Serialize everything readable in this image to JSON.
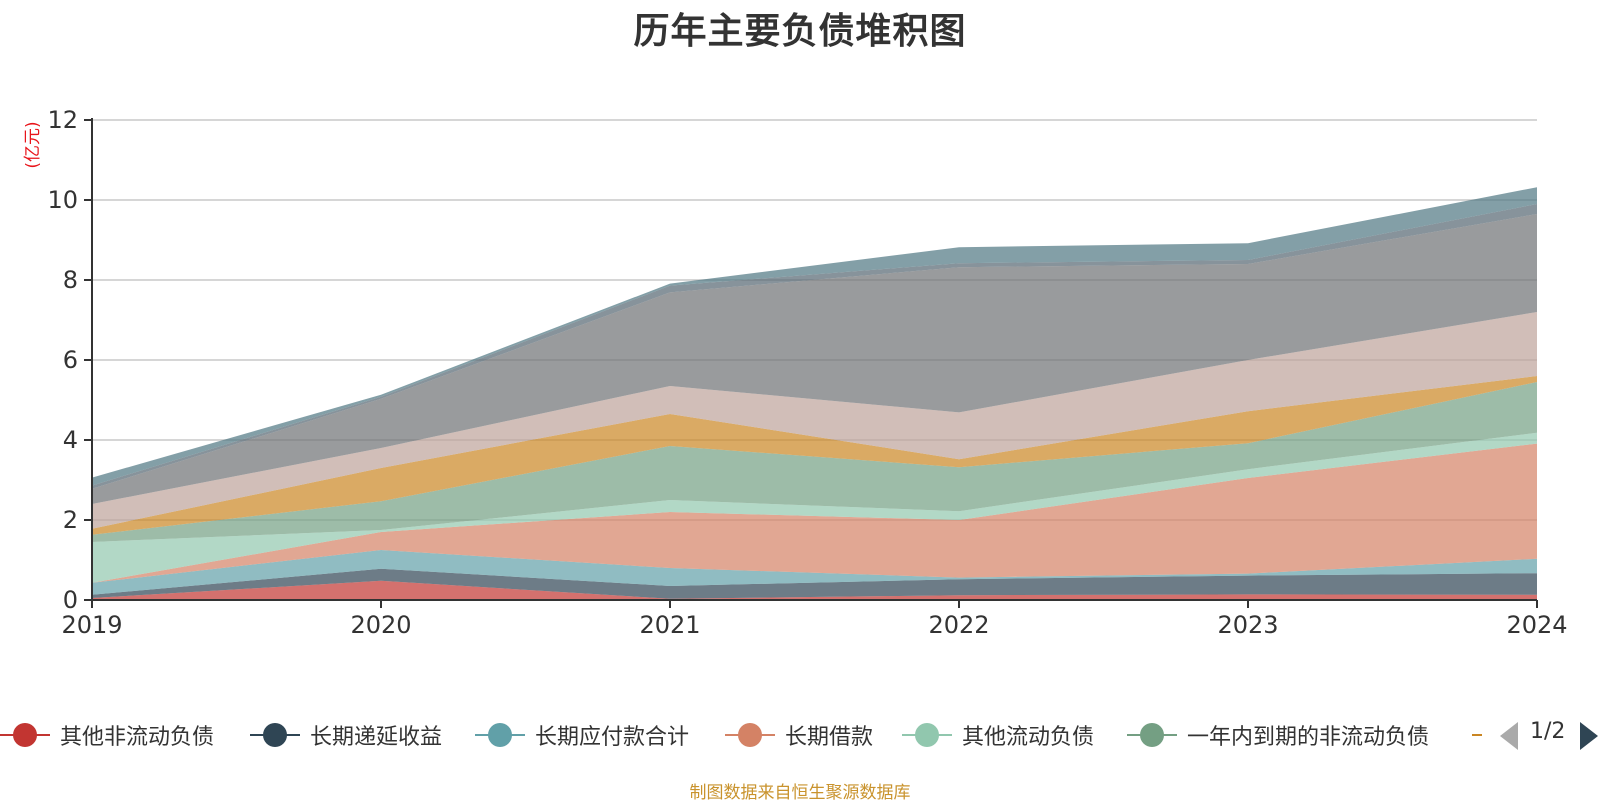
{
  "chart_data": {
    "type": "area",
    "stacked": true,
    "title": "历年主要负债堆积图",
    "unit_label": "(亿元)",
    "x": [
      "2019",
      "2020",
      "2021",
      "2022",
      "2023",
      "2024"
    ],
    "ylim": [
      0,
      12
    ],
    "yticks": [
      0,
      2,
      4,
      6,
      8,
      10,
      12
    ],
    "grid": true,
    "legend_position": "bottom",
    "series": [
      {
        "name": "其他非流动负债",
        "color": "#c23531",
        "values": [
          0.05,
          0.48,
          0.03,
          0.12,
          0.14,
          0.13
        ]
      },
      {
        "name": "长期递延收益",
        "color": "#2f4554",
        "values": [
          0.08,
          0.3,
          0.32,
          0.4,
          0.47,
          0.54
        ]
      },
      {
        "name": "长期应付款合计",
        "color": "#61a0a8",
        "values": [
          0.3,
          0.47,
          0.45,
          0.04,
          0.05,
          0.36
        ]
      },
      {
        "name": "长期借款",
        "color": "#d48265",
        "values": [
          0.0,
          0.45,
          1.4,
          1.44,
          2.39,
          2.88
        ]
      },
      {
        "name": "其他流动负债",
        "color": "#91c7ae",
        "values": [
          1.02,
          0.05,
          0.3,
          0.22,
          0.22,
          0.27
        ]
      },
      {
        "name": "一年内到期的非流动负债",
        "color": "#749f83",
        "values": [
          0.18,
          0.72,
          1.35,
          1.1,
          0.65,
          1.27
        ]
      },
      {
        "name": "",
        "color": "#ca8622",
        "values": [
          0.15,
          0.83,
          0.8,
          0.2,
          0.8,
          0.15
        ]
      },
      {
        "name": "",
        "color": "#bda29a",
        "values": [
          0.62,
          0.5,
          0.7,
          1.17,
          1.28,
          1.6
        ]
      },
      {
        "name": "",
        "color": "#6e7074",
        "values": [
          0.38,
          1.23,
          2.34,
          3.63,
          2.4,
          2.45
        ]
      },
      {
        "name": "",
        "color": "#546570",
        "values": [
          0.08,
          0.05,
          0.17,
          0.1,
          0.1,
          0.25
        ]
      },
      {
        "name": "",
        "color": "#4f7682",
        "values": [
          0.2,
          0.05,
          0.05,
          0.4,
          0.42,
          0.42
        ]
      }
    ]
  },
  "legend_page": "1/2",
  "footer": "制图数据来自恒生聚源数据库"
}
